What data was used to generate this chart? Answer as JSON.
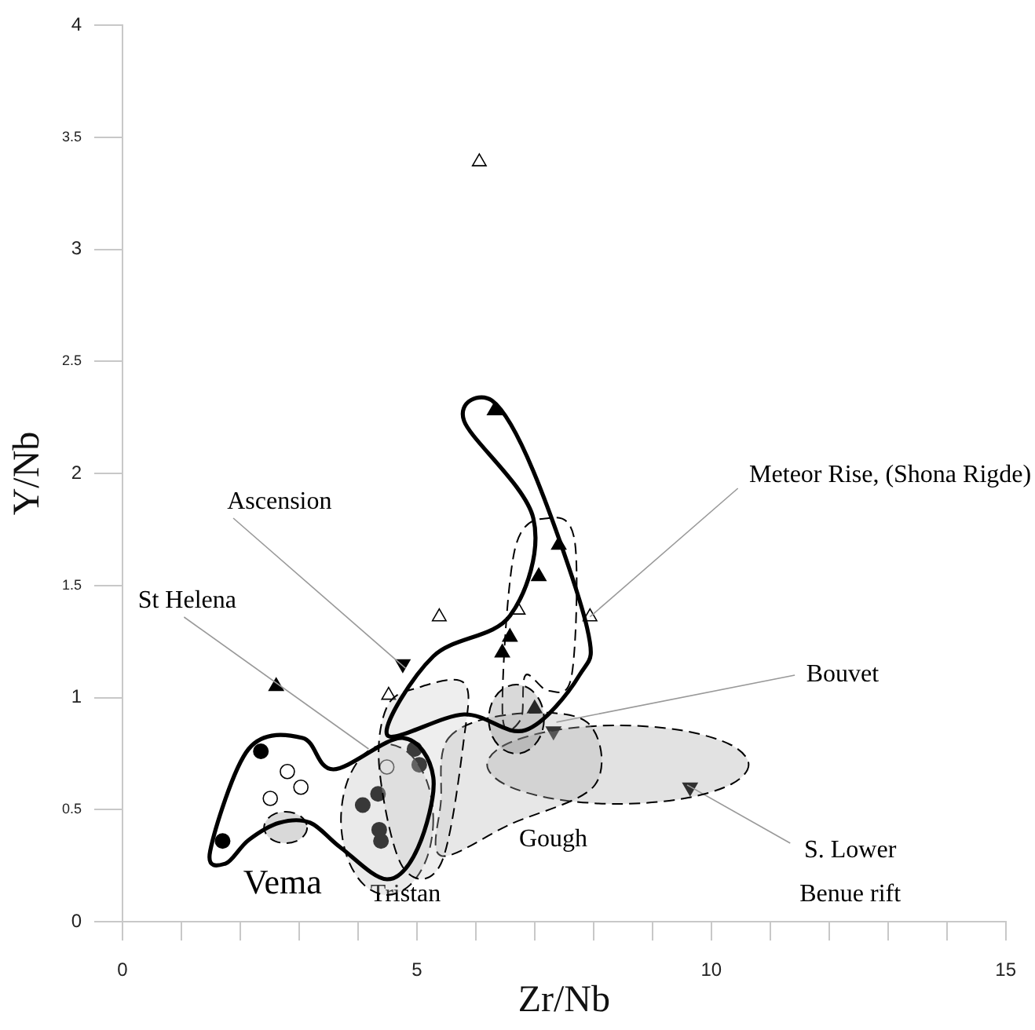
{
  "chart_data": {
    "type": "scatter",
    "xlabel": "Zr/Nb",
    "ylabel": "Y/Nb",
    "xlim": [
      0,
      15
    ],
    "ylim": [
      0,
      4
    ],
    "xticks": [
      0,
      {
        "value": 1,
        "label": null
      },
      {
        "value": 2,
        "label": null
      },
      {
        "value": 3,
        "label": null
      },
      {
        "value": 4,
        "label": null
      },
      5,
      {
        "value": 6,
        "label": null
      },
      {
        "value": 7,
        "label": null
      },
      {
        "value": 8,
        "label": null
      },
      {
        "value": 9,
        "label": null
      },
      10,
      {
        "value": 11,
        "label": null
      },
      {
        "value": 12,
        "label": null
      },
      {
        "value": 13,
        "label": null
      },
      {
        "value": 14,
        "label": null
      },
      15
    ],
    "yticks": [
      0,
      0.5,
      1,
      1.5,
      2,
      2.5,
      3,
      3.5,
      4
    ],
    "grid": false,
    "legend": false,
    "series": [
      {
        "color": "#000000",
        "marker": "triangle",
        "x": [
          6.32,
          7.41,
          7.07,
          6.58,
          6.45,
          7.0,
          2.61
        ],
        "values": [
          2.28,
          1.68,
          1.54,
          1.27,
          1.2,
          0.95,
          1.05
        ]
      },
      {
        "color": "#ffffff",
        "marker": "triangle",
        "x": [
          6.06,
          5.38,
          6.72,
          7.94,
          4.52
        ],
        "values": [
          3.39,
          1.36,
          1.39,
          1.36,
          1.01
        ]
      },
      {
        "color": "#000000",
        "marker": "triangle-down",
        "x": [
          4.76,
          7.32,
          9.64
        ],
        "values": [
          1.15,
          0.85,
          0.6
        ]
      },
      {
        "color": "#000000",
        "marker": "circle",
        "x": [
          1.7,
          2.35,
          4.36,
          4.39,
          4.08,
          4.34,
          4.96,
          5.04
        ],
        "values": [
          0.36,
          0.76,
          0.41,
          0.36,
          0.52,
          0.57,
          0.77,
          0.7
        ]
      },
      {
        "color": "#ffffff",
        "marker": "circle",
        "x": [
          2.8,
          3.03,
          2.51,
          4.49
        ],
        "values": [
          0.67,
          0.6,
          0.55,
          0.69
        ]
      }
    ],
    "annotations": [
      {
        "text": "Ascension",
        "x": 4.81,
        "y": 1.13
      },
      "St Helena",
      {
        "text": "Meteor Rise, (Shona Rigde)",
        "x": 7.94,
        "y": 1.36
      },
      {
        "text": "Bouvet",
        "x": 7.37,
        "y": 0.89
      },
      "Gough",
      {
        "text": "S. Lower Benue rift",
        "x": 9.59,
        "y": 0.61
      },
      "Vema",
      "Tristan"
    ]
  }
}
